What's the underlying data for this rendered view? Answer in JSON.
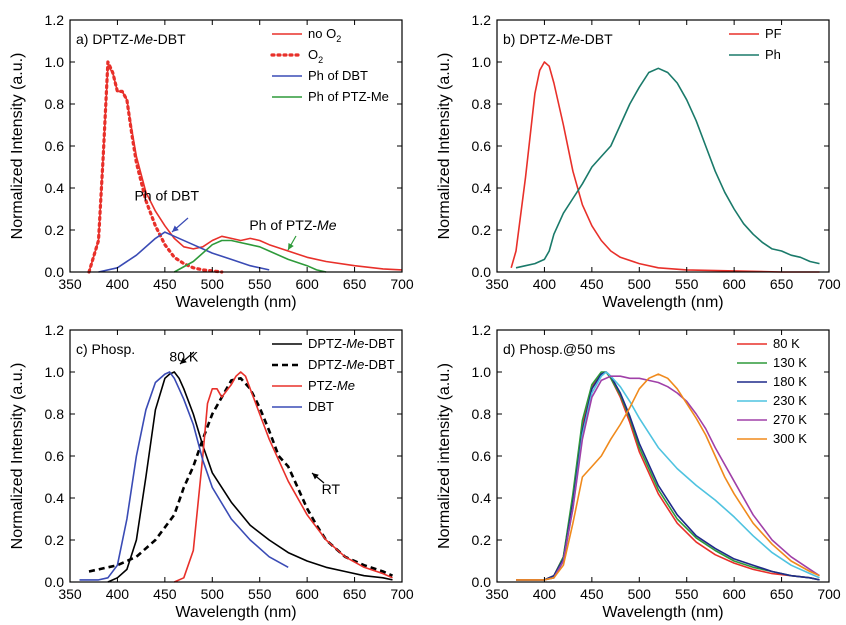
{
  "chart_data": [
    {
      "type": "line",
      "panel": "a)",
      "title": "DPTZ-Me-DBT",
      "title_parts": [
        "DPTZ-",
        "Me",
        "-DBT"
      ],
      "xlabel": "Wavelength (nm)",
      "ylabel": "Normalized Intensity (a.u.)",
      "xlim": [
        350,
        700
      ],
      "ylim": [
        0,
        1.2
      ],
      "xticks": [
        350,
        400,
        450,
        500,
        550,
        600,
        650,
        700
      ],
      "yticks": [
        0.0,
        0.2,
        0.4,
        0.6,
        0.8,
        1.0,
        1.2
      ],
      "legend_position": "top-right",
      "series": [
        {
          "name": "no O2",
          "name_main": "no O",
          "name_sub": "2",
          "color": "#e8302a",
          "style": "solid",
          "x": [
            370,
            380,
            385,
            390,
            395,
            400,
            405,
            410,
            415,
            420,
            430,
            440,
            450,
            460,
            470,
            480,
            490,
            500,
            510,
            520,
            530,
            540,
            550,
            560,
            580,
            600,
            620,
            650,
            680,
            700
          ],
          "y": [
            0.0,
            0.15,
            0.55,
            0.98,
            0.95,
            0.86,
            0.86,
            0.82,
            0.68,
            0.55,
            0.38,
            0.29,
            0.22,
            0.16,
            0.12,
            0.11,
            0.12,
            0.15,
            0.17,
            0.16,
            0.15,
            0.16,
            0.15,
            0.13,
            0.1,
            0.07,
            0.05,
            0.03,
            0.015,
            0.01
          ]
        },
        {
          "name": "O2",
          "name_main": "O",
          "name_sub": "2",
          "color": "#e8302a",
          "style": "dotted",
          "x": [
            370,
            380,
            385,
            390,
            395,
            400,
            405,
            410,
            415,
            420,
            430,
            440,
            450,
            460,
            470,
            480,
            490,
            500,
            510
          ],
          "y": [
            0.0,
            0.15,
            0.55,
            1.0,
            0.95,
            0.86,
            0.86,
            0.82,
            0.66,
            0.52,
            0.34,
            0.22,
            0.13,
            0.07,
            0.04,
            0.02,
            0.01,
            0.005,
            0.0
          ]
        },
        {
          "name": "Ph of DBT",
          "color": "#3a4bb5",
          "style": "solid",
          "x": [
            380,
            400,
            420,
            440,
            450,
            460,
            480,
            500,
            520,
            540,
            560
          ],
          "y": [
            0.0,
            0.02,
            0.08,
            0.16,
            0.19,
            0.17,
            0.13,
            0.09,
            0.06,
            0.03,
            0.01
          ]
        },
        {
          "name": "Ph of PTZ-Me",
          "color": "#2e9a3a",
          "style": "solid",
          "x": [
            460,
            480,
            500,
            510,
            520,
            530,
            540,
            550,
            560,
            580,
            600,
            610,
            620
          ],
          "y": [
            0.0,
            0.05,
            0.13,
            0.15,
            0.15,
            0.14,
            0.13,
            0.12,
            0.1,
            0.06,
            0.03,
            0.01,
            0.0
          ]
        }
      ],
      "annotations": [
        {
          "text": "Ph of DBT",
          "color": "#3a4bb5",
          "x": 452,
          "y": 0.34
        },
        {
          "text": "Ph of PTZ-Me",
          "parts": [
            "Ph of PTZ-",
            "Me"
          ],
          "color": "#2e9a3a",
          "x": 585,
          "y": 0.2
        }
      ]
    },
    {
      "type": "line",
      "panel": "b)",
      "title": "DPTZ-Me-DBT",
      "title_parts": [
        "DPTZ-",
        "Me",
        "-DBT"
      ],
      "xlabel": "Wavelength (nm)",
      "ylabel": "Normalized Intensity (a.u.)",
      "xlim": [
        350,
        700
      ],
      "ylim": [
        0,
        1.2
      ],
      "xticks": [
        350,
        400,
        450,
        500,
        550,
        600,
        650,
        700
      ],
      "yticks": [
        0.0,
        0.2,
        0.4,
        0.6,
        0.8,
        1.0,
        1.2
      ],
      "legend_position": "top-right",
      "series": [
        {
          "name": "PF",
          "color": "#e8302a",
          "style": "solid",
          "x": [
            365,
            370,
            380,
            390,
            395,
            400,
            405,
            410,
            420,
            430,
            440,
            450,
            460,
            470,
            480,
            500,
            520,
            550,
            600,
            650,
            690
          ],
          "y": [
            0.02,
            0.1,
            0.45,
            0.85,
            0.96,
            1.0,
            0.98,
            0.9,
            0.7,
            0.48,
            0.32,
            0.22,
            0.15,
            0.1,
            0.07,
            0.04,
            0.02,
            0.01,
            0.005,
            0.0,
            0.0
          ]
        },
        {
          "name": "Ph",
          "color": "#1a7a6a",
          "style": "solid",
          "x": [
            370,
            380,
            390,
            400,
            405,
            410,
            420,
            430,
            440,
            450,
            460,
            470,
            480,
            490,
            500,
            510,
            520,
            530,
            540,
            550,
            560,
            570,
            580,
            590,
            600,
            610,
            620,
            630,
            640,
            650,
            660,
            670,
            680,
            690
          ],
          "y": [
            0.02,
            0.03,
            0.04,
            0.06,
            0.1,
            0.18,
            0.28,
            0.35,
            0.42,
            0.5,
            0.55,
            0.6,
            0.7,
            0.8,
            0.88,
            0.95,
            0.97,
            0.95,
            0.9,
            0.82,
            0.72,
            0.6,
            0.48,
            0.38,
            0.3,
            0.23,
            0.18,
            0.14,
            0.11,
            0.1,
            0.08,
            0.07,
            0.05,
            0.04
          ]
        }
      ]
    },
    {
      "type": "line",
      "panel": "c)",
      "title": "Phosp.",
      "xlabel": "Wavelength (nm)",
      "ylabel": "Normalized Intensity (a.u.)",
      "xlim": [
        350,
        700
      ],
      "ylim": [
        0,
        1.2
      ],
      "xticks": [
        350,
        400,
        450,
        500,
        550,
        600,
        650,
        700
      ],
      "yticks": [
        0.0,
        0.2,
        0.4,
        0.6,
        0.8,
        1.0,
        1.2
      ],
      "legend_position": "top-right",
      "series": [
        {
          "name": "DPTZ-Me-DBT",
          "parts": [
            "DPTZ-",
            "Me",
            "-DBT"
          ],
          "color": "#000000",
          "style": "solid",
          "x": [
            390,
            400,
            410,
            420,
            430,
            440,
            450,
            455,
            460,
            465,
            470,
            480,
            490,
            500,
            520,
            540,
            560,
            580,
            600,
            620,
            640,
            660,
            680,
            690
          ],
          "y": [
            0.0,
            0.02,
            0.06,
            0.2,
            0.5,
            0.82,
            0.97,
            0.99,
            1.0,
            0.97,
            0.92,
            0.8,
            0.65,
            0.52,
            0.38,
            0.27,
            0.2,
            0.14,
            0.1,
            0.07,
            0.05,
            0.03,
            0.02,
            0.01
          ]
        },
        {
          "name": "DPTZ-Me-DBT",
          "parts": [
            "DPTZ-",
            "Me",
            "-DBT"
          ],
          "color": "#000000",
          "style": "dashed",
          "x": [
            370,
            380,
            400,
            420,
            440,
            460,
            470,
            480,
            490,
            500,
            510,
            520,
            530,
            540,
            550,
            560,
            570,
            580,
            590,
            600,
            610,
            620,
            640,
            660,
            680,
            690
          ],
          "y": [
            0.05,
            0.06,
            0.08,
            0.12,
            0.2,
            0.32,
            0.45,
            0.55,
            0.68,
            0.8,
            0.88,
            0.96,
            0.97,
            0.92,
            0.83,
            0.72,
            0.6,
            0.55,
            0.45,
            0.35,
            0.27,
            0.2,
            0.12,
            0.08,
            0.05,
            0.03
          ]
        },
        {
          "name": "PTZ-Me",
          "parts": [
            "PTZ-",
            "Me"
          ],
          "color": "#e8302a",
          "style": "solid",
          "x": [
            460,
            470,
            480,
            490,
            495,
            500,
            505,
            510,
            515,
            520,
            525,
            530,
            535,
            540,
            550,
            560,
            570,
            580,
            600,
            620,
            640,
            660,
            680,
            690
          ],
          "y": [
            0.0,
            0.02,
            0.15,
            0.6,
            0.85,
            0.92,
            0.92,
            0.88,
            0.91,
            0.94,
            0.98,
            1.0,
            0.98,
            0.92,
            0.8,
            0.68,
            0.58,
            0.48,
            0.32,
            0.2,
            0.12,
            0.07,
            0.04,
            0.02
          ]
        },
        {
          "name": "DBT",
          "color": "#3a4bb5",
          "style": "solid",
          "x": [
            360,
            380,
            390,
            400,
            410,
            420,
            430,
            440,
            450,
            455,
            460,
            465,
            470,
            480,
            490,
            500,
            520,
            540,
            560,
            580
          ],
          "y": [
            0.01,
            0.01,
            0.02,
            0.08,
            0.3,
            0.6,
            0.82,
            0.95,
            0.99,
            1.0,
            0.97,
            0.92,
            0.87,
            0.75,
            0.58,
            0.45,
            0.3,
            0.2,
            0.12,
            0.07
          ]
        }
      ],
      "annotations": [
        {
          "text": "80 K",
          "x": 470,
          "y": 1.05
        },
        {
          "text": "RT",
          "x": 625,
          "y": 0.42
        }
      ]
    },
    {
      "type": "line",
      "panel": "d)",
      "title": "Phosp.@50 ms",
      "xlabel": "Wavelength (nm)",
      "ylabel": "Normalized intensity (a.u.)",
      "xlim": [
        350,
        700
      ],
      "ylim": [
        0,
        1.2
      ],
      "xticks": [
        350,
        400,
        450,
        500,
        550,
        600,
        650,
        700
      ],
      "yticks": [
        0.0,
        0.2,
        0.4,
        0.6,
        0.8,
        1.0,
        1.2
      ],
      "legend_position": "top-right",
      "series": [
        {
          "name": "80 K",
          "color": "#e8302a",
          "style": "solid",
          "x": [
            370,
            400,
            410,
            420,
            430,
            440,
            450,
            460,
            465,
            470,
            480,
            490,
            500,
            520,
            540,
            560,
            580,
            600,
            620,
            640,
            660,
            680,
            690
          ],
          "y": [
            0.01,
            0.01,
            0.03,
            0.12,
            0.4,
            0.75,
            0.93,
            0.99,
            1.0,
            0.97,
            0.88,
            0.76,
            0.62,
            0.42,
            0.28,
            0.19,
            0.13,
            0.09,
            0.06,
            0.04,
            0.03,
            0.02,
            0.01
          ]
        },
        {
          "name": "130 K",
          "color": "#2e9a3a",
          "style": "solid",
          "x": [
            370,
            400,
            410,
            420,
            430,
            440,
            450,
            460,
            465,
            470,
            480,
            490,
            500,
            520,
            540,
            560,
            580,
            600,
            620,
            640,
            660,
            680,
            690
          ],
          "y": [
            0.01,
            0.01,
            0.03,
            0.12,
            0.42,
            0.77,
            0.94,
            1.0,
            1.0,
            0.97,
            0.89,
            0.78,
            0.64,
            0.44,
            0.3,
            0.21,
            0.15,
            0.1,
            0.07,
            0.05,
            0.03,
            0.02,
            0.01
          ]
        },
        {
          "name": "180 K",
          "color": "#1f2a8a",
          "style": "solid",
          "x": [
            370,
            400,
            410,
            420,
            430,
            440,
            450,
            460,
            465,
            470,
            480,
            490,
            500,
            520,
            540,
            560,
            580,
            600,
            620,
            640,
            660,
            680,
            690
          ],
          "y": [
            0.01,
            0.01,
            0.03,
            0.11,
            0.38,
            0.72,
            0.92,
            0.99,
            1.0,
            0.98,
            0.9,
            0.79,
            0.66,
            0.46,
            0.32,
            0.22,
            0.16,
            0.11,
            0.08,
            0.05,
            0.03,
            0.02,
            0.01
          ]
        },
        {
          "name": "230 K",
          "color": "#4fc3e0",
          "style": "solid",
          "x": [
            370,
            400,
            410,
            420,
            430,
            440,
            450,
            460,
            465,
            470,
            480,
            490,
            500,
            520,
            540,
            560,
            580,
            600,
            620,
            640,
            660,
            680,
            690
          ],
          "y": [
            0.01,
            0.01,
            0.02,
            0.1,
            0.35,
            0.7,
            0.9,
            0.98,
            1.0,
            0.98,
            0.93,
            0.86,
            0.78,
            0.64,
            0.54,
            0.46,
            0.39,
            0.31,
            0.22,
            0.14,
            0.08,
            0.04,
            0.02
          ]
        },
        {
          "name": "270 K",
          "color": "#a040a8",
          "style": "solid",
          "x": [
            370,
            400,
            410,
            420,
            430,
            440,
            450,
            460,
            470,
            480,
            490,
            500,
            510,
            520,
            530,
            540,
            550,
            560,
            570,
            580,
            600,
            620,
            640,
            660,
            680,
            690
          ],
          "y": [
            0.01,
            0.01,
            0.02,
            0.1,
            0.35,
            0.68,
            0.88,
            0.96,
            0.98,
            0.98,
            0.97,
            0.97,
            0.96,
            0.95,
            0.93,
            0.9,
            0.86,
            0.8,
            0.73,
            0.64,
            0.48,
            0.32,
            0.2,
            0.12,
            0.06,
            0.03
          ]
        },
        {
          "name": "300 K",
          "color": "#f08a1c",
          "style": "solid",
          "x": [
            370,
            400,
            410,
            420,
            430,
            440,
            450,
            460,
            470,
            480,
            490,
            500,
            510,
            520,
            530,
            540,
            550,
            560,
            570,
            580,
            590,
            600,
            620,
            640,
            660,
            680,
            690
          ],
          "y": [
            0.01,
            0.01,
            0.02,
            0.08,
            0.28,
            0.5,
            0.55,
            0.6,
            0.68,
            0.75,
            0.83,
            0.92,
            0.97,
            0.99,
            0.97,
            0.92,
            0.85,
            0.78,
            0.7,
            0.6,
            0.5,
            0.42,
            0.28,
            0.18,
            0.1,
            0.05,
            0.03
          ]
        }
      ]
    }
  ]
}
